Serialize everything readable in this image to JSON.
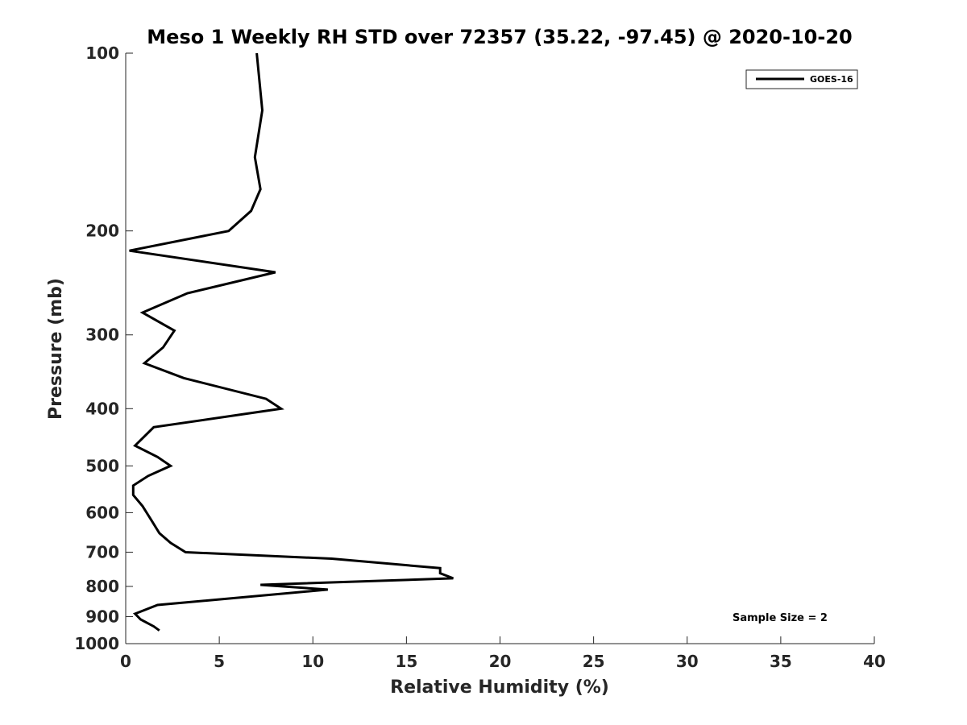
{
  "chart_data": {
    "type": "line",
    "title": "Meso 1 Weekly RH STD over 72357 (35.22, -97.45) @ 2020-10-20",
    "xlabel": "Relative Humidity (%)",
    "ylabel": "Pressure (mb)",
    "xlim": [
      0,
      40
    ],
    "ylim": [
      100,
      1000
    ],
    "y_scale": "log",
    "y_reversed": true,
    "xticks": [
      0,
      5,
      10,
      15,
      20,
      25,
      30,
      35,
      40
    ],
    "yticks": [
      100,
      200,
      300,
      400,
      500,
      600,
      700,
      800,
      900,
      1000
    ],
    "grid": false,
    "legend": {
      "position": "top-right",
      "entries": [
        "GOES-16"
      ]
    },
    "annotation": "Sample Size = 2",
    "series": [
      {
        "name": "GOES-16",
        "color": "#000000",
        "points": [
          [
            7.0,
            100
          ],
          [
            7.3,
            125
          ],
          [
            6.9,
            150
          ],
          [
            7.2,
            170
          ],
          [
            6.7,
            185
          ],
          [
            5.5,
            200
          ],
          [
            0.2,
            216
          ],
          [
            8.0,
            235
          ],
          [
            3.3,
            255
          ],
          [
            0.9,
            275
          ],
          [
            2.6,
            295
          ],
          [
            2.0,
            315
          ],
          [
            1.0,
            335
          ],
          [
            3.1,
            355
          ],
          [
            7.5,
            385
          ],
          [
            8.3,
            400
          ],
          [
            1.5,
            430
          ],
          [
            0.5,
            462
          ],
          [
            1.7,
            483
          ],
          [
            2.4,
            500
          ],
          [
            1.2,
            520
          ],
          [
            0.4,
            540
          ],
          [
            0.4,
            560
          ],
          [
            0.9,
            585
          ],
          [
            1.4,
            620
          ],
          [
            1.8,
            650
          ],
          [
            2.4,
            675
          ],
          [
            3.2,
            700
          ],
          [
            11.0,
            718
          ],
          [
            16.8,
            745
          ],
          [
            16.8,
            760
          ],
          [
            17.5,
            775
          ],
          [
            7.2,
            795
          ],
          [
            10.8,
            810
          ],
          [
            1.7,
            860
          ],
          [
            0.5,
            890
          ],
          [
            0.8,
            910
          ],
          [
            1.5,
            935
          ],
          [
            1.8,
            950
          ]
        ]
      }
    ]
  }
}
